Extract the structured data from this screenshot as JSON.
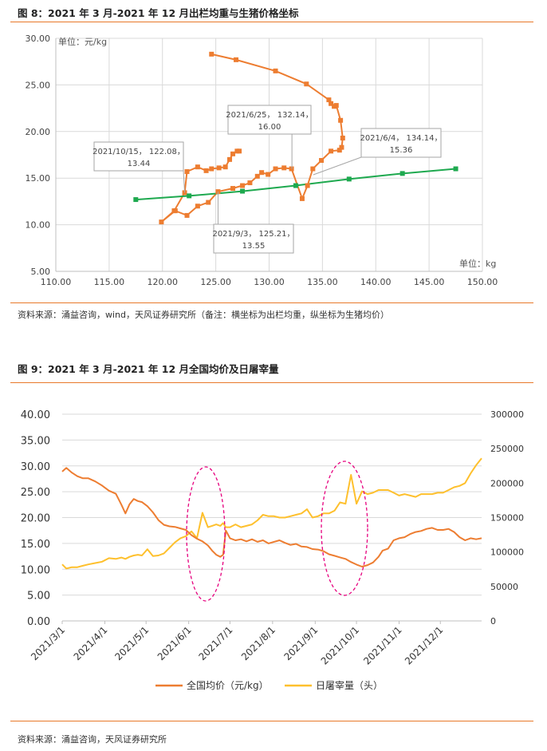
{
  "figure8": {
    "title": "图 8：2021 年 3 月-2021 年 12 月出栏均重与生猪价格坐标",
    "source": "资料来源：涌益咨询，wind，天风证券研究所（备注：横坐标为出栏均重，纵坐标为生猪均价）"
  },
  "figure9": {
    "title": "图 9：2021 年 3 月-2021 年 12 月全国均价及日屠宰量",
    "source": "资料来源：涌益咨询，天风证券研究所"
  },
  "colors": {
    "orange": "#ed7d31",
    "green": "#1ea94f",
    "gold": "#fec02d",
    "accent": "#e8792a",
    "highlight": "#e6007e"
  },
  "chart_data": [
    {
      "type": "scatter",
      "xlim": [
        110,
        150
      ],
      "ylim": [
        5,
        30
      ],
      "x_ticks": [
        "110.00",
        "115.00",
        "120.00",
        "125.00",
        "130.00",
        "135.00",
        "140.00",
        "145.00",
        "150.00"
      ],
      "y_ticks": [
        "5.00",
        "10.00",
        "15.00",
        "20.00",
        "25.00",
        "30.00"
      ],
      "y_unit": "单位：元/kg",
      "x_unit": "单位：kg",
      "grid": true,
      "series": [
        {
          "color": "#ed7d31",
          "x": [
            124.6,
            126.9,
            130.6,
            133.5,
            135.6,
            135.8,
            136.1,
            136.3,
            136.7,
            136.9,
            136.8,
            136.6,
            135.8,
            134.9,
            134.1,
            133.6,
            133.1,
            132.1,
            131.4,
            130.6,
            129.9,
            129.3,
            128.9,
            128.2,
            127.5,
            126.6,
            125.21,
            124.3,
            123.3,
            122.3,
            121.2,
            119.9,
            121.1,
            122.08,
            122.3,
            123.3,
            124.1,
            124.6,
            125.3,
            125.9,
            126.3,
            126.6,
            127.0,
            127.2
          ],
          "y": [
            28.3,
            27.7,
            26.5,
            25.1,
            23.4,
            23.0,
            22.7,
            22.8,
            21.2,
            19.3,
            18.3,
            18.0,
            17.9,
            16.9,
            16.0,
            14.2,
            12.8,
            16.0,
            16.1,
            16.0,
            15.4,
            15.6,
            15.2,
            14.5,
            14.2,
            13.9,
            13.55,
            12.4,
            12.0,
            11.0,
            11.5,
            10.3,
            11.5,
            13.44,
            15.7,
            16.2,
            15.8,
            16.0,
            16.1,
            16.2,
            17.0,
            17.6,
            17.9,
            17.9
          ]
        },
        {
          "color": "#1ea94f",
          "x": [
            117.5,
            122.5,
            127.5,
            132.5,
            137.5,
            142.5,
            147.5
          ],
          "y": [
            12.7,
            13.1,
            13.6,
            14.2,
            14.9,
            15.5,
            16.0
          ]
        }
      ],
      "annotations": [
        {
          "line1": "2021/6/25， 132.14，",
          "line2": "16.00"
        },
        {
          "line1": "2021/6/4， 134.14，",
          "line2": "15.36"
        },
        {
          "line1": "2021/10/15， 122.08，",
          "line2": "13.44"
        },
        {
          "line1": "2021/9/3， 125.21，",
          "line2": "13.55"
        }
      ]
    },
    {
      "type": "line",
      "x_ticks": [
        "2021/3/1",
        "2021/4/1",
        "2021/5/1",
        "2021/6/1",
        "2021/7/1",
        "2021/8/1",
        "2021/9/1",
        "2021/10/1",
        "2021/11/1",
        "2021/12/1"
      ],
      "left_ticks": [
        "0.00",
        "5.00",
        "10.00",
        "15.00",
        "20.00",
        "25.00",
        "30.00",
        "35.00",
        "40.00"
      ],
      "right_ticks": [
        "0",
        "50000",
        "100000",
        "150000",
        "200000",
        "250000",
        "300000"
      ],
      "ylim_left": [
        0,
        40
      ],
      "ylim_right": [
        0,
        300000
      ],
      "legend_position": "bottom",
      "series": [
        {
          "name": "全国均价（元/kg）",
          "color": "#ed7d31",
          "axis": "left",
          "x": [
            "2021-03-01",
            "2021-03-04",
            "2021-03-08",
            "2021-03-12",
            "2021-03-16",
            "2021-03-20",
            "2021-03-25",
            "2021-03-30",
            "2021-04-04",
            "2021-04-09",
            "2021-04-13",
            "2021-04-16",
            "2021-04-19",
            "2021-04-22",
            "2021-04-25",
            "2021-04-28",
            "2021-05-02",
            "2021-05-06",
            "2021-05-10",
            "2021-05-14",
            "2021-05-18",
            "2021-05-22",
            "2021-05-26",
            "2021-05-30",
            "2021-06-03",
            "2021-06-07",
            "2021-06-11",
            "2021-06-15",
            "2021-06-18",
            "2021-06-21",
            "2021-06-24",
            "2021-06-26",
            "2021-06-28",
            "2021-07-01",
            "2021-07-05",
            "2021-07-09",
            "2021-07-13",
            "2021-07-17",
            "2021-07-21",
            "2021-07-25",
            "2021-07-29",
            "2021-08-02",
            "2021-08-06",
            "2021-08-10",
            "2021-08-14",
            "2021-08-18",
            "2021-08-22",
            "2021-08-26",
            "2021-08-30",
            "2021-09-03",
            "2021-09-07",
            "2021-09-11",
            "2021-09-15",
            "2021-09-19",
            "2021-09-23",
            "2021-09-27",
            "2021-10-01",
            "2021-10-05",
            "2021-10-09",
            "2021-10-13",
            "2021-10-17",
            "2021-10-20",
            "2021-10-24",
            "2021-10-28",
            "2021-11-01",
            "2021-11-05",
            "2021-11-09",
            "2021-11-13",
            "2021-11-17",
            "2021-11-21",
            "2021-11-25",
            "2021-11-29",
            "2021-12-03",
            "2021-12-07",
            "2021-12-11",
            "2021-12-15",
            "2021-12-19",
            "2021-12-23",
            "2021-12-27",
            "2021-12-31"
          ],
          "values": [
            28.9,
            29.6,
            28.7,
            28.0,
            27.6,
            27.6,
            27.0,
            26.2,
            25.2,
            24.6,
            22.5,
            20.8,
            22.6,
            23.6,
            23.2,
            23.0,
            22.2,
            21.0,
            19.5,
            18.6,
            18.3,
            18.2,
            17.9,
            17.6,
            16.6,
            15.9,
            15.4,
            14.6,
            13.6,
            12.8,
            12.4,
            12.8,
            17.5,
            16.0,
            15.6,
            15.8,
            15.4,
            15.8,
            15.3,
            15.6,
            15.0,
            15.3,
            15.6,
            15.1,
            14.7,
            14.9,
            14.4,
            14.3,
            13.9,
            13.8,
            13.5,
            12.9,
            12.6,
            12.3,
            12.0,
            11.4,
            10.9,
            10.5,
            10.8,
            11.3,
            12.4,
            13.6,
            14.0,
            15.6,
            16.0,
            16.2,
            16.8,
            17.2,
            17.4,
            17.8,
            18.0,
            17.6,
            17.6,
            17.8,
            17.2,
            16.2,
            15.6,
            16.0,
            15.8,
            16.0
          ]
        },
        {
          "name": "日屠宰量（头）",
          "color": "#fec02d",
          "axis": "right",
          "x": [
            "2021-03-01",
            "2021-03-04",
            "2021-03-08",
            "2021-03-12",
            "2021-03-16",
            "2021-03-20",
            "2021-03-25",
            "2021-03-30",
            "2021-04-04",
            "2021-04-09",
            "2021-04-13",
            "2021-04-16",
            "2021-04-19",
            "2021-04-22",
            "2021-04-25",
            "2021-04-28",
            "2021-05-02",
            "2021-05-06",
            "2021-05-10",
            "2021-05-14",
            "2021-05-18",
            "2021-05-22",
            "2021-05-26",
            "2021-05-30",
            "2021-06-03",
            "2021-06-07",
            "2021-06-11",
            "2021-06-15",
            "2021-06-18",
            "2021-06-21",
            "2021-06-24",
            "2021-06-26",
            "2021-06-28",
            "2021-07-01",
            "2021-07-05",
            "2021-07-09",
            "2021-07-13",
            "2021-07-17",
            "2021-07-21",
            "2021-07-25",
            "2021-07-29",
            "2021-08-02",
            "2021-08-06",
            "2021-08-10",
            "2021-08-14",
            "2021-08-18",
            "2021-08-22",
            "2021-08-26",
            "2021-08-30",
            "2021-09-03",
            "2021-09-07",
            "2021-09-11",
            "2021-09-15",
            "2021-09-19",
            "2021-09-23",
            "2021-09-27",
            "2021-10-01",
            "2021-10-05",
            "2021-10-09",
            "2021-10-13",
            "2021-10-17",
            "2021-10-20",
            "2021-10-24",
            "2021-10-28",
            "2021-11-01",
            "2021-11-05",
            "2021-11-09",
            "2021-11-13",
            "2021-11-17",
            "2021-11-21",
            "2021-11-25",
            "2021-11-29",
            "2021-12-03",
            "2021-12-07",
            "2021-12-11",
            "2021-12-15",
            "2021-12-19",
            "2021-12-23",
            "2021-12-27",
            "2021-12-31"
          ],
          "values": [
            82000,
            76000,
            78000,
            78000,
            80000,
            82000,
            84000,
            86000,
            91000,
            90000,
            92000,
            90000,
            93000,
            95000,
            96000,
            95000,
            104000,
            94000,
            95000,
            98000,
            106000,
            114000,
            120000,
            123000,
            130000,
            120000,
            157000,
            136000,
            138000,
            140000,
            138000,
            142000,
            136000,
            136000,
            140000,
            136000,
            138000,
            140000,
            146000,
            154000,
            152000,
            152000,
            150000,
            150000,
            152000,
            154000,
            156000,
            162000,
            150000,
            152000,
            156000,
            156000,
            160000,
            172000,
            170000,
            212000,
            170000,
            188000,
            184000,
            186000,
            190000,
            190000,
            190000,
            186000,
            182000,
            184000,
            182000,
            180000,
            184000,
            184000,
            184000,
            186000,
            186000,
            190000,
            194000,
            196000,
            200000,
            214000,
            226000,
            236000
          ]
        }
      ]
    }
  ]
}
